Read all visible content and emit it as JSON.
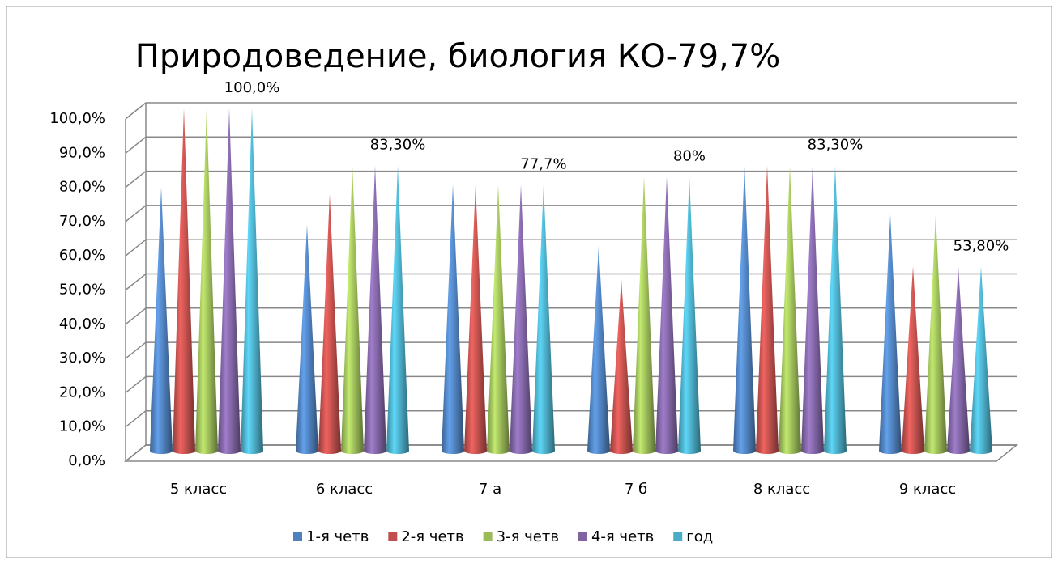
{
  "chart_data": {
    "type": "cone-bar",
    "title": "Природоведение, биология КО-79,7%",
    "categories": [
      "5 класс",
      "6 класс",
      "7 а",
      "7 б",
      "8 класс",
      "9 класс"
    ],
    "series": [
      {
        "name": "1-я четв",
        "color": "#4f81bd",
        "values": [
          77,
          66,
          77.7,
          60,
          83.3,
          69
        ]
      },
      {
        "name": "2-я четв",
        "color": "#c0504d",
        "values": [
          100,
          75,
          77.7,
          50,
          83.3,
          53.8
        ]
      },
      {
        "name": "3-я четв",
        "color": "#9bbb59",
        "values": [
          100,
          83.3,
          77.7,
          80,
          83.3,
          69
        ]
      },
      {
        "name": "4-я четв",
        "color": "#8064a2",
        "values": [
          100,
          83.3,
          77.7,
          80,
          83.3,
          53.8
        ]
      },
      {
        "name": "год",
        "color": "#4bacc6",
        "values": [
          100,
          83.3,
          77.7,
          80,
          83.3,
          53.8
        ],
        "value_labels": [
          "100,0%",
          "83,30%",
          "77,7%",
          "80%",
          "83,30%",
          "53,80%"
        ]
      }
    ],
    "ylim": [
      0,
      100
    ],
    "yticks": [
      {
        "value": 0,
        "label": "0,0%"
      },
      {
        "value": 10,
        "label": "10,0%"
      },
      {
        "value": 20,
        "label": "20,0%"
      },
      {
        "value": 30,
        "label": "30,0%"
      },
      {
        "value": 40,
        "label": "40,0%"
      },
      {
        "value": 50,
        "label": "50,0%"
      },
      {
        "value": 60,
        "label": "60,0%"
      },
      {
        "value": 70,
        "label": "70,0%"
      },
      {
        "value": 80,
        "label": "80,0%"
      },
      {
        "value": 90,
        "label": "90,0%"
      },
      {
        "value": 100,
        "label": "100,0%"
      }
    ],
    "grid": true,
    "legend": "bottom"
  }
}
